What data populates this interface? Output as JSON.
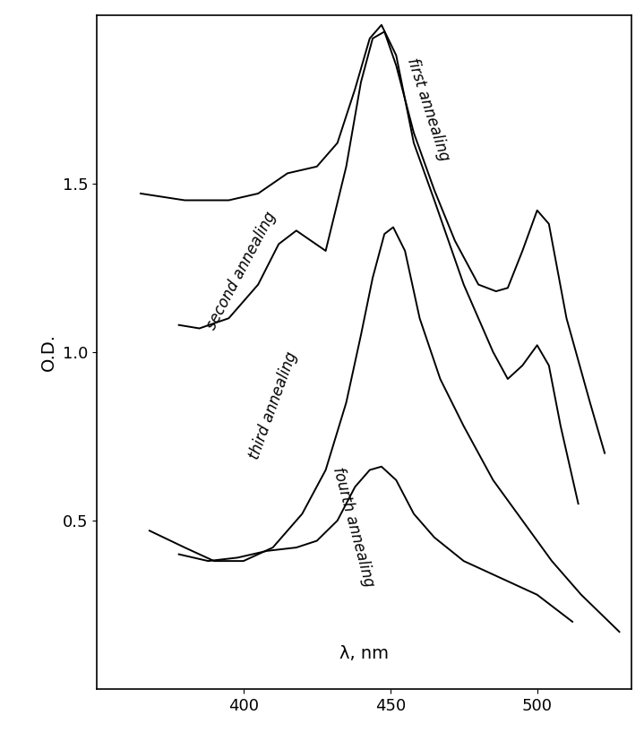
{
  "chart_data": {
    "type": "line",
    "x_label": "λ, nm",
    "y_label": "O.D.",
    "xlim": [
      350,
      532
    ],
    "xticks": [
      400,
      450,
      500
    ],
    "ylim": [
      0,
      2.0
    ],
    "yticks": [
      0.5,
      1.0,
      1.5
    ],
    "grid": false,
    "series": [
      {
        "name": "first annealing",
        "color": "#000000",
        "x": [
          365,
          380,
          395,
          405,
          415,
          425,
          432,
          438,
          443,
          447,
          452,
          458,
          465,
          475,
          485,
          490,
          495,
          500,
          504,
          508,
          514
        ],
        "values": [
          1.47,
          1.45,
          1.45,
          1.47,
          1.53,
          1.55,
          1.62,
          1.78,
          1.93,
          1.97,
          1.88,
          1.62,
          1.45,
          1.2,
          1.0,
          0.92,
          0.96,
          1.02,
          0.96,
          0.78,
          0.55
        ]
      },
      {
        "name": "second annealing",
        "color": "#000000",
        "x": [
          378,
          385,
          395,
          405,
          412,
          418,
          423,
          428,
          435,
          440,
          444,
          448,
          452,
          458,
          465,
          472,
          480,
          486,
          490,
          495,
          500,
          504,
          510,
          518,
          523
        ],
        "values": [
          1.08,
          1.07,
          1.1,
          1.2,
          1.32,
          1.36,
          1.33,
          1.3,
          1.55,
          1.8,
          1.93,
          1.95,
          1.85,
          1.65,
          1.48,
          1.33,
          1.2,
          1.18,
          1.19,
          1.3,
          1.42,
          1.38,
          1.1,
          0.85,
          0.7
        ]
      },
      {
        "name": "third annealing",
        "color": "#000000",
        "x": [
          368,
          380,
          390,
          400,
          410,
          420,
          428,
          435,
          440,
          444,
          448,
          451,
          455,
          460,
          467,
          475,
          485,
          495,
          505,
          515,
          528
        ],
        "values": [
          0.47,
          0.42,
          0.38,
          0.38,
          0.42,
          0.52,
          0.65,
          0.85,
          1.05,
          1.22,
          1.35,
          1.37,
          1.3,
          1.1,
          0.92,
          0.78,
          0.62,
          0.5,
          0.38,
          0.28,
          0.17
        ]
      },
      {
        "name": "fourth annealing",
        "color": "#000000",
        "x": [
          378,
          388,
          398,
          408,
          418,
          425,
          432,
          438,
          443,
          447,
          452,
          458,
          465,
          475,
          490,
          500,
          512
        ],
        "values": [
          0.4,
          0.38,
          0.39,
          0.41,
          0.42,
          0.44,
          0.5,
          0.6,
          0.65,
          0.66,
          0.62,
          0.52,
          0.45,
          0.38,
          0.32,
          0.28,
          0.2
        ]
      }
    ]
  }
}
